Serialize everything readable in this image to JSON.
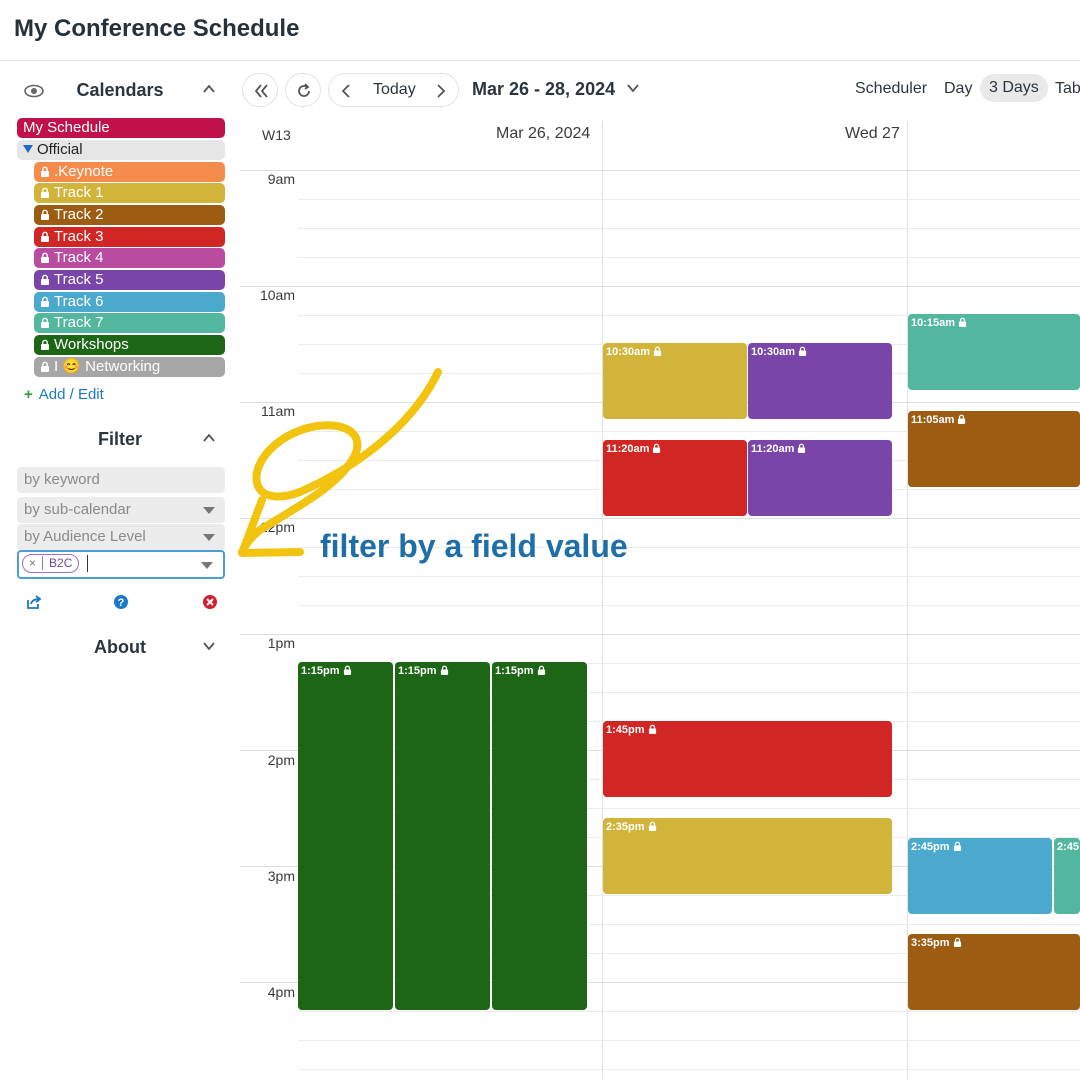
{
  "app": {
    "title": "My Conference Schedule"
  },
  "sidebar": {
    "calendars_title": "Calendars",
    "items": [
      {
        "label": "My Schedule",
        "color": "#c0114b",
        "locked": false
      },
      {
        "label": "Official",
        "color": "#e6e6e6",
        "group": true
      },
      {
        "label": ".Keynote",
        "color": "#f68c4b",
        "locked": true
      },
      {
        "label": "Track 1",
        "color": "#d3b43b",
        "locked": true
      },
      {
        "label": "Track 2",
        "color": "#9c5c12",
        "locked": true
      },
      {
        "label": "Track 3",
        "color": "#d12623",
        "locked": true
      },
      {
        "label": "Track 4",
        "color": "#b94ba1",
        "locked": true
      },
      {
        "label": "Track 5",
        "color": "#7a45a9",
        "locked": true
      },
      {
        "label": "Track 6",
        "color": "#4aa9cc",
        "locked": true
      },
      {
        "label": "Track 7",
        "color": "#53b79f",
        "locked": true
      },
      {
        "label": "Workshops",
        "color": "#1d6616",
        "locked": true
      },
      {
        "label": "I 😊 Networking",
        "color": "#a6a6a6",
        "locked": true
      }
    ],
    "add_edit": "Add / Edit",
    "filter_title": "Filter",
    "filters": {
      "keyword_placeholder": "by keyword",
      "subcal": "by sub-calendar",
      "audience": "by Audience Level",
      "chip": "B2C",
      "chip_remove": "×"
    },
    "about_title": "About"
  },
  "toolbar": {
    "today": "Today",
    "range": "Mar 26 - 28, 2024",
    "views": [
      "Scheduler",
      "Day",
      "3 Days",
      "Tab"
    ]
  },
  "grid": {
    "week": "W13",
    "days": [
      "Mar 26, 2024",
      "Wed 27"
    ],
    "hours": [
      "9am",
      "10am",
      "11am",
      "12pm",
      "1pm",
      "2pm",
      "3pm",
      "4pm"
    ]
  },
  "events": [
    {
      "label": "10:30am",
      "color": "#d3b43b"
    },
    {
      "label": "10:30am",
      "color": "#7a45a9"
    },
    {
      "label": "11:20am",
      "color": "#d12623"
    },
    {
      "label": "11:20am",
      "color": "#7a45a9"
    },
    {
      "label": "1:15pm",
      "color": "#1d6616"
    },
    {
      "label": "1:15pm",
      "color": "#1d6616"
    },
    {
      "label": "1:15pm",
      "color": "#1d6616"
    },
    {
      "label": "1:45pm",
      "color": "#d12623"
    },
    {
      "label": "2:35pm",
      "color": "#d3b43b"
    },
    {
      "label": "10:15am",
      "color": "#53b79f"
    },
    {
      "label": "11:05am",
      "color": "#9c5c12"
    },
    {
      "label": "2:45pm",
      "color": "#4aa9cc"
    },
    {
      "label": "2:45",
      "color": "#53b79f"
    },
    {
      "label": "3:35pm",
      "color": "#9c5c12"
    }
  ],
  "annotation": {
    "text": "filter by a field value",
    "color": "#1e6fa8",
    "arrow_color": "#f2c40f"
  }
}
